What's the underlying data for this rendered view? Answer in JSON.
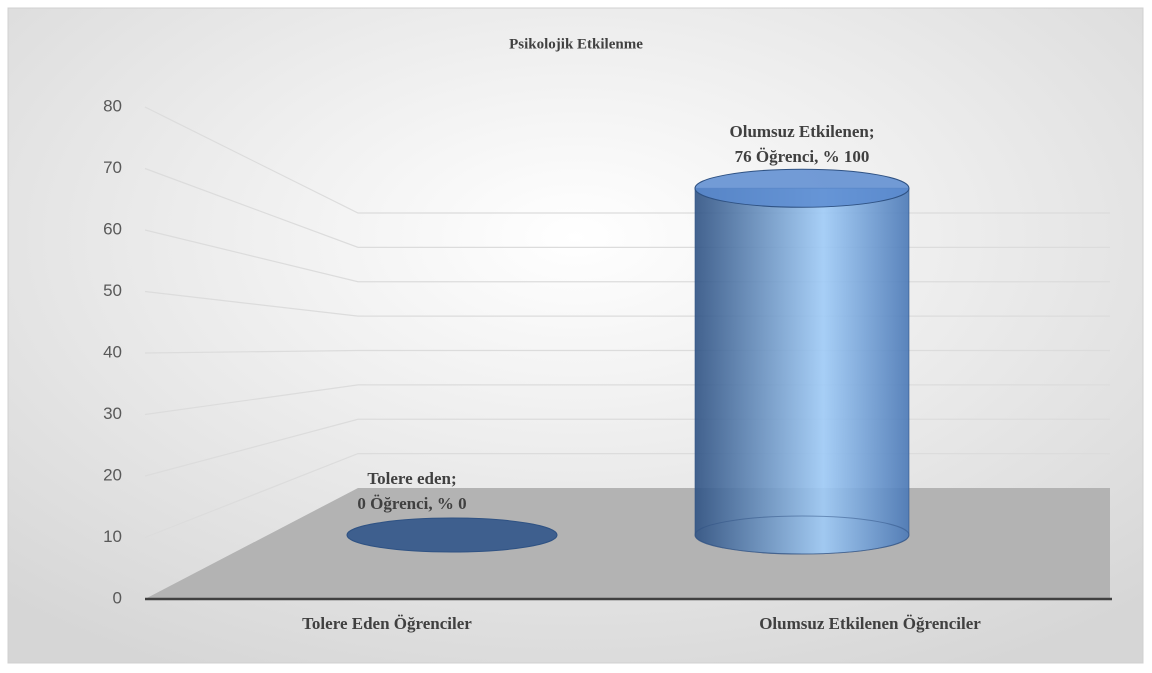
{
  "chart_data": {
    "type": "cylinder",
    "title": "Psikolojik Etkilenme",
    "categories": [
      "Tolere Eden Öğrenciler",
      "Olumsuz Etkilenen Öğrenciler"
    ],
    "values": [
      0,
      76
    ],
    "value_labels": [
      [
        "Tolere eden;",
        "0 Öğrenci, % 0"
      ],
      [
        "Olumsuz Etkilenen;",
        "76 Öğrenci, % 100"
      ]
    ],
    "color": "#4a7ac0",
    "ylim": [
      0,
      80
    ],
    "yticks": [
      0,
      10,
      20,
      30,
      40,
      50,
      60,
      70,
      80
    ],
    "grid": true
  }
}
